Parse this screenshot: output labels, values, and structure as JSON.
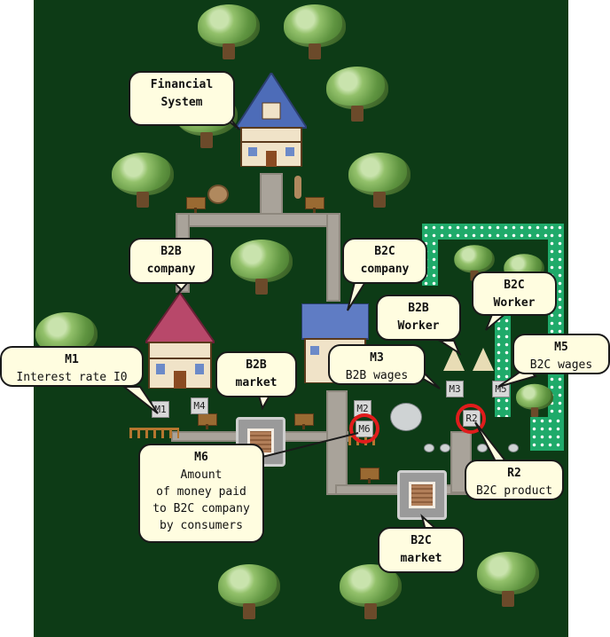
{
  "callouts": {
    "financial_system": "Financial\nSystem",
    "b2b_company": "B2B\ncompany",
    "b2c_company": "B2C\ncompany",
    "b2b_worker": "B2B\nWorker",
    "b2c_worker": "B2C\nWorker",
    "m1": {
      "title": "M1",
      "text": "Interest rate I0"
    },
    "b2b_market": "B2B\nmarket",
    "m3": {
      "title": "M3",
      "text": "B2B wages"
    },
    "m5": {
      "title": "M5",
      "text": "B2C wages"
    },
    "m6": {
      "title": "M6",
      "text": "Amount\nof money paid\nto B2C company\nby consumers"
    },
    "r2": {
      "title": "R2",
      "text": "B2C product"
    },
    "b2c_market": "B2C\nmarket"
  },
  "map_markers": {
    "m1": "M1",
    "m2": "M2",
    "m3": "M3",
    "m4": "M4",
    "m5": "M5",
    "m6": "M6",
    "r2": "R2"
  },
  "colors": {
    "map_bg": "#0d3b16",
    "callout_bg": "#fffde0",
    "highlight_ring": "#e01c1c",
    "hedge": "#1faa6a"
  }
}
